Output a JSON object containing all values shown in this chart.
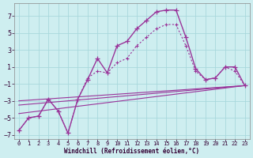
{
  "background_color": "#ceeef0",
  "grid_color": "#a8d8dc",
  "line_color": "#993399",
  "xlabel": "Windchill (Refroidissement éolien,°C)",
  "xlim": [
    -0.5,
    23.5
  ],
  "ylim": [
    -7.5,
    8.5
  ],
  "yticks": [
    -7,
    -5,
    -3,
    -1,
    1,
    3,
    5,
    7
  ],
  "xticks": [
    0,
    1,
    2,
    3,
    4,
    5,
    6,
    7,
    8,
    9,
    10,
    11,
    12,
    13,
    14,
    15,
    16,
    17,
    18,
    19,
    20,
    21,
    22,
    23
  ],
  "curve_main_x": [
    0,
    1,
    2,
    3,
    4,
    5,
    6,
    7,
    8,
    9,
    10,
    11,
    12,
    13,
    14,
    15,
    16,
    17,
    18,
    19,
    20,
    21,
    22,
    23
  ],
  "curve_main_y": [
    -6.5,
    -5.0,
    -4.8,
    -2.8,
    -4.2,
    -6.8,
    -2.8,
    -0.5,
    2.0,
    0.3,
    3.5,
    4.0,
    5.5,
    6.5,
    7.5,
    7.7,
    7.7,
    4.5,
    0.8,
    -0.5,
    -0.3,
    1.0,
    1.0,
    -1.2
  ],
  "curve_dot_x": [
    0,
    1,
    2,
    3,
    4,
    5,
    6,
    7,
    8,
    9,
    10,
    11,
    12,
    13,
    14,
    15,
    16,
    17,
    18,
    19,
    20,
    21,
    22,
    23
  ],
  "curve_dot_y": [
    -6.5,
    -5.0,
    -4.8,
    -2.8,
    -4.2,
    -6.8,
    -2.8,
    -0.3,
    0.5,
    0.3,
    1.5,
    2.0,
    3.5,
    4.5,
    5.5,
    6.0,
    6.0,
    3.5,
    0.5,
    -0.5,
    -0.3,
    1.0,
    0.5,
    -1.2
  ],
  "trend1_x": [
    0,
    23
  ],
  "trend1_y": [
    -3.0,
    -1.2
  ],
  "trend2_x": [
    0,
    23
  ],
  "trend2_y": [
    -3.5,
    -1.2
  ],
  "trend3_x": [
    0,
    23
  ],
  "trend3_y": [
    -4.5,
    -1.2
  ]
}
